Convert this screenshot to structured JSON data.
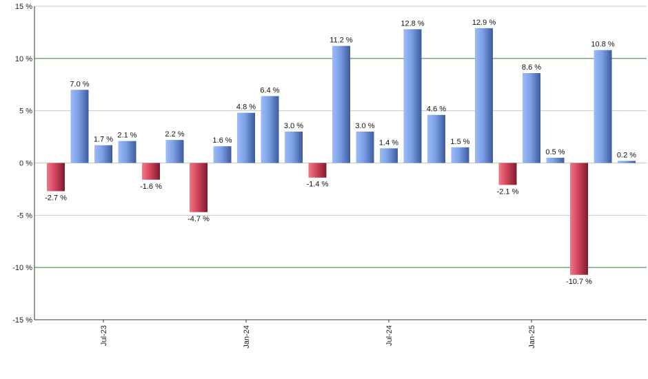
{
  "chart_data": {
    "type": "bar",
    "title": "",
    "xlabel": "",
    "ylabel": "",
    "ylim": [
      -15,
      15
    ],
    "y_ticks": [
      -15,
      -10,
      -5,
      0,
      5,
      10,
      15
    ],
    "y_tick_labels": [
      "-15 %",
      "-10 %",
      "-5 %",
      "0 %",
      "5 %",
      "10 %",
      "15 %"
    ],
    "grid": true,
    "highlighted_gridlines": [
      10,
      -10
    ],
    "positive_color": "#6f93dd",
    "negative_color": "#c23a4e",
    "highlight_grid_color": "#2e7d32",
    "grid_color": "#c9c9c9",
    "values": [
      -2.7,
      7.0,
      1.7,
      2.1,
      -1.6,
      2.2,
      -4.7,
      1.6,
      4.8,
      6.4,
      3.0,
      -1.4,
      11.2,
      3.0,
      1.4,
      12.8,
      4.6,
      1.5,
      12.9,
      -2.1,
      8.6,
      0.5,
      -10.7,
      10.8,
      0.2
    ],
    "value_labels": [
      "-2.7 %",
      "7.0 %",
      "1.7 %",
      "2.1 %",
      "-1.6 %",
      "2.2 %",
      "-4.7 %",
      "1.6 %",
      "4.8 %",
      "6.4 %",
      "3.0 %",
      "-1.4 %",
      "11.2 %",
      "3.0 %",
      "1.4 %",
      "12.8 %",
      "4.6 %",
      "1.5 %",
      "12.9 %",
      "-2.1 %",
      "8.6 %",
      "0.5 %",
      "-10.7 %",
      "10.8 %",
      "0.2 %"
    ],
    "x_tick_labels": [
      {
        "label": "Jul-23",
        "index": 2
      },
      {
        "label": "Jan-24",
        "index": 8
      },
      {
        "label": "Jul-24",
        "index": 14
      },
      {
        "label": "Jan-25",
        "index": 20
      }
    ]
  }
}
